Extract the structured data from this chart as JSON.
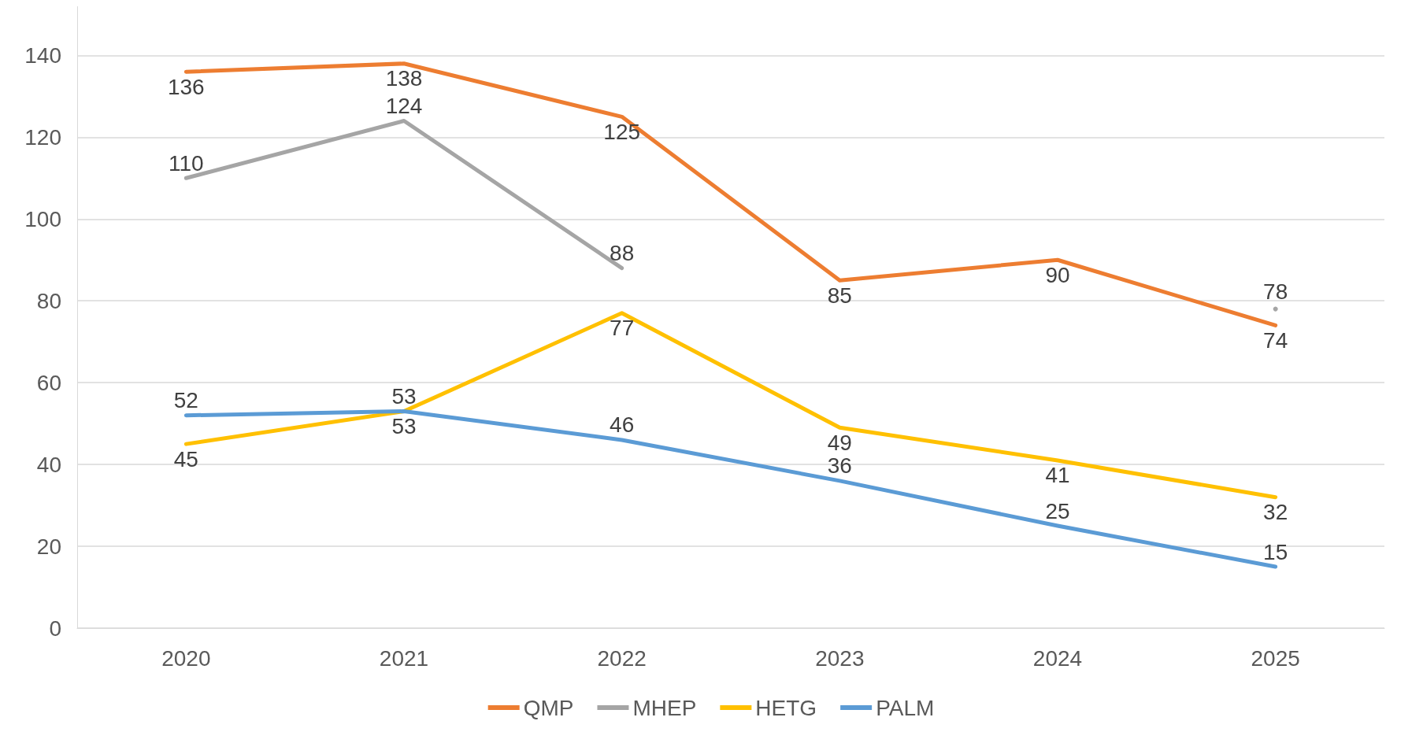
{
  "chart_data": {
    "type": "line",
    "categories": [
      "2020",
      "2021",
      "2022",
      "2023",
      "2024",
      "2025"
    ],
    "series": [
      {
        "name": "QMP",
        "color": "#ed7d31",
        "values": [
          136,
          138,
          125,
          85,
          90,
          74
        ]
      },
      {
        "name": "MHEP",
        "color": "#a5a5a5",
        "values": [
          110,
          124,
          88,
          null,
          null,
          78
        ]
      },
      {
        "name": "HETG",
        "color": "#ffc000",
        "values": [
          45,
          53,
          77,
          49,
          41,
          32
        ]
      },
      {
        "name": "PALM",
        "color": "#5b9bd5",
        "values": [
          52,
          53,
          46,
          36,
          25,
          15
        ]
      }
    ],
    "ylim": [
      0,
      152
    ],
    "yticks": [
      0,
      20,
      40,
      60,
      80,
      100,
      120,
      140
    ],
    "grid": "y",
    "legend": "bottom",
    "data_labels": true,
    "marker": "none"
  }
}
